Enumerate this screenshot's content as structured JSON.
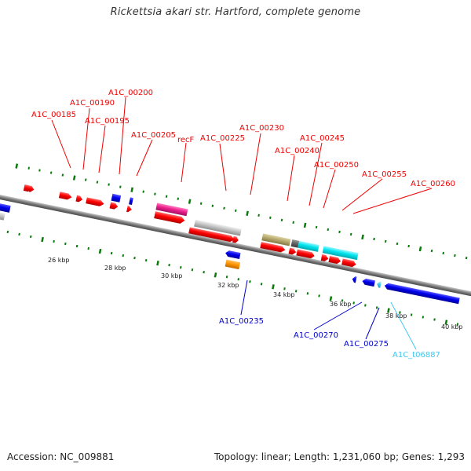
{
  "title": "Rickettsia akari str. Hartford, complete genome",
  "footer": {
    "accession": "Accession: NC_009881",
    "summary": "Topology: linear; Length: 1,231,060 bp; Genes: 1,293"
  },
  "colors": {
    "forward_gene": "#ff0000",
    "reverse_gene": "#0000ee",
    "cyan_feature": "#00e5ee",
    "magenta_feature": "#ee1f8f",
    "grey_feature": "#bbbbbb",
    "khaki_feature": "#b8ab70",
    "orange_feature": "#ff9500",
    "tick_green": "#0a7a0a",
    "backbone": "#777777"
  },
  "axis": {
    "tick_labels": [
      "26 kbp",
      "28 kbp",
      "30 kbp",
      "32 kbp",
      "34 kbp",
      "36 kbp",
      "38 kbp",
      "40 kbp"
    ]
  },
  "gene_labels": {
    "top": [
      "A1C_00185",
      "A1C_00190",
      "A1C_00195",
      "A1C_00200",
      "A1C_00205",
      "recF",
      "A1C_00225",
      "A1C_00230",
      "A1C_00240",
      "A1C_00245",
      "A1C_00250",
      "A1C_00255",
      "A1C_00260"
    ],
    "bottom": [
      "A1C_00235",
      "A1C_00270",
      "A1C_00275",
      "A1C_t06887"
    ]
  }
}
